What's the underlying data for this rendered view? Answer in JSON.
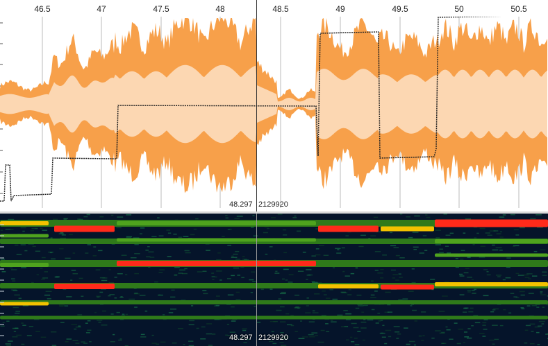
{
  "ruler": {
    "ticks": [
      "46.5",
      "47",
      "47.5",
      "48",
      "48.5",
      "49",
      "49.5",
      "50",
      "50.5"
    ]
  },
  "cursor": {
    "time": "48.297",
    "sample": "2129920"
  },
  "colors": {
    "envelope": "#f7a04a",
    "rms": "#fcd7b2",
    "pitch_curve": "#222222",
    "grid": "#bbbbbb",
    "spectrogram_bg": "#05142a",
    "harmonic_hot": "#ff2a1a",
    "harmonic_warm": "#f2c200",
    "harmonic_mid": "#4fa31e"
  }
}
